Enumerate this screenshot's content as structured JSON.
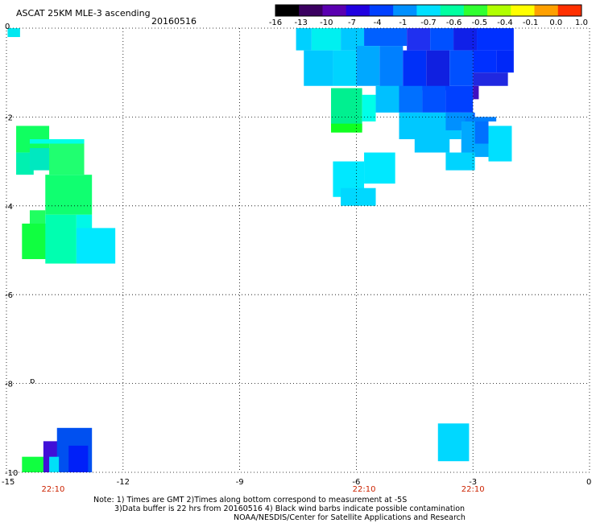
{
  "header": {
    "title": "ASCAT 25KM MLE-3 ascending",
    "date": "20160516"
  },
  "colorbar": {
    "labels": [
      "-16",
      "-13",
      "-10",
      "-7",
      "-4",
      "-1",
      "-0.7",
      "-0.6",
      "-0.5",
      "-0.4",
      "-0.1",
      "0.0",
      "1.0"
    ],
    "colors": [
      "#000000",
      "#3a0060",
      "#5a00b0",
      "#2000e0",
      "#0040ff",
      "#0090ff",
      "#00e0ff",
      "#00ffa0",
      "#30ff30",
      "#b0ff00",
      "#ffff00",
      "#ffa000",
      "#ff3000"
    ]
  },
  "notes": {
    "line1": "Note: 1) Times are GMT 2)Times along bottom correspond to measurement at -5S",
    "line2": "3)Data buffer is 22 hrs from 20160516 4) Black wind barbs indicate possible contamination",
    "line3": "NOAA/NESDIS/Center for Satellite Applications and Research"
  },
  "chart_data": {
    "type": "heatmap",
    "title": "ASCAT 25KM MLE-3 ascending",
    "subtitle": "20160516",
    "xlim": [
      -15,
      0
    ],
    "ylim": [
      -10,
      0
    ],
    "x_ticks": [
      -15,
      -12,
      -9,
      -6,
      -3,
      0
    ],
    "x_tick_labels": [
      "-15",
      "-12",
      "-9",
      "-6",
      "-3",
      "0"
    ],
    "y_ticks": [
      0,
      -2,
      -4,
      -6,
      -8,
      -10
    ],
    "y_tick_labels": [
      "0",
      "-2",
      "-4",
      "-6",
      "-8",
      "-10"
    ],
    "grid": true,
    "time_labels": [
      {
        "x": -13.8,
        "label": "22:10"
      },
      {
        "x": -5.8,
        "label": "22:10"
      },
      {
        "x": -3.0,
        "label": "22:10"
      }
    ],
    "cells": [
      {
        "x0": -14.97,
        "x1": -14.65,
        "y0": -0.2,
        "y1": 0.0,
        "color": "#00e8f0"
      },
      {
        "x0": -7.55,
        "x1": -7.15,
        "y0": -0.5,
        "y1": 0.0,
        "color": "#00d0ff"
      },
      {
        "x0": -7.15,
        "x1": -6.4,
        "y0": -0.5,
        "y1": 0.0,
        "color": "#00f0f0"
      },
      {
        "x0": -6.4,
        "x1": -5.8,
        "y0": -0.5,
        "y1": 0.0,
        "color": "#00c8ff"
      },
      {
        "x0": -5.8,
        "x1": -4.7,
        "y0": -0.4,
        "y1": 0.0,
        "color": "#0060ff"
      },
      {
        "x0": -4.7,
        "x1": -4.1,
        "y0": -0.5,
        "y1": 0.0,
        "color": "#2030f0"
      },
      {
        "x0": -4.1,
        "x1": -3.5,
        "y0": -0.5,
        "y1": 0.0,
        "color": "#0050ff"
      },
      {
        "x0": -3.5,
        "x1": -2.9,
        "y0": -0.5,
        "y1": 0.0,
        "color": "#1020e8"
      },
      {
        "x0": -2.9,
        "x1": -1.95,
        "y0": -0.5,
        "y1": 0.0,
        "color": "#0030ff"
      },
      {
        "x0": -7.35,
        "x1": -6.6,
        "y0": -1.3,
        "y1": -0.5,
        "color": "#00c8ff"
      },
      {
        "x0": -6.6,
        "x1": -6.0,
        "y0": -1.3,
        "y1": -0.5,
        "color": "#00d4ff"
      },
      {
        "x0": -6.0,
        "x1": -5.4,
        "y0": -1.3,
        "y1": -0.4,
        "color": "#00a8ff"
      },
      {
        "x0": -5.4,
        "x1": -4.8,
        "y0": -1.4,
        "y1": -0.4,
        "color": "#0080ff"
      },
      {
        "x0": -4.8,
        "x1": -4.2,
        "y0": -1.4,
        "y1": -0.5,
        "color": "#0030f8"
      },
      {
        "x0": -4.2,
        "x1": -3.6,
        "y0": -1.4,
        "y1": -0.5,
        "color": "#1020e0"
      },
      {
        "x0": -3.6,
        "x1": -3.0,
        "y0": -1.3,
        "y1": -0.5,
        "color": "#0050ff"
      },
      {
        "x0": -3.0,
        "x1": -2.4,
        "y0": -1.0,
        "y1": -0.5,
        "color": "#0030ff"
      },
      {
        "x0": -2.4,
        "x1": -1.95,
        "y0": -1.0,
        "y1": -0.5,
        "color": "#0028f8"
      },
      {
        "x0": -3.0,
        "x1": -2.1,
        "y0": -1.3,
        "y1": -1.0,
        "color": "#2028e0"
      },
      {
        "x0": -6.65,
        "x1": -5.85,
        "y0": -2.3,
        "y1": -1.35,
        "color": "#00f090"
      },
      {
        "x0": -6.65,
        "x1": -5.85,
        "y0": -2.35,
        "y1": -2.15,
        "color": "#10ff20"
      },
      {
        "x0": -5.85,
        "x1": -5.5,
        "y0": -2.1,
        "y1": -1.5,
        "color": "#00ffe8"
      },
      {
        "x0": -5.5,
        "x1": -4.9,
        "y0": -1.9,
        "y1": -1.3,
        "color": "#00c0ff"
      },
      {
        "x0": -4.9,
        "x1": -4.3,
        "y0": -1.9,
        "y1": -1.3,
        "color": "#0070ff"
      },
      {
        "x0": -4.3,
        "x1": -3.7,
        "y0": -1.9,
        "y1": -1.3,
        "color": "#0050ff"
      },
      {
        "x0": -3.7,
        "x1": -3.0,
        "y0": -1.9,
        "y1": -1.3,
        "color": "#0040ff"
      },
      {
        "x0": -3.0,
        "x1": -2.85,
        "y0": -1.6,
        "y1": -1.3,
        "color": "#4010c0"
      },
      {
        "x0": -4.9,
        "x1": -3.3,
        "y0": -2.5,
        "y1": -1.9,
        "color": "#00c8ff"
      },
      {
        "x0": -3.7,
        "x1": -3.0,
        "y0": -2.3,
        "y1": -1.9,
        "color": "#0090ff"
      },
      {
        "x0": -3.0,
        "x1": -2.95,
        "y0": -2.1,
        "y1": -1.9,
        "color": "#0060ff"
      },
      {
        "x0": -4.5,
        "x1": -3.6,
        "y0": -2.8,
        "y1": -2.5,
        "color": "#00c8ff"
      },
      {
        "x0": -3.3,
        "x1": -2.6,
        "y0": -2.9,
        "y1": -2.1,
        "color": "#00a8ff"
      },
      {
        "x0": -2.95,
        "x1": -2.6,
        "y0": -2.6,
        "y1": -2.0,
        "color": "#0070ff"
      },
      {
        "x0": -2.6,
        "x1": -2.0,
        "y0": -3.0,
        "y1": -2.2,
        "color": "#00e0ff"
      },
      {
        "x0": -3.2,
        "x1": -2.4,
        "y0": -2.1,
        "y1": -2.0,
        "color": "#0080ff"
      },
      {
        "x0": -3.7,
        "x1": -2.95,
        "y0": -3.2,
        "y1": -2.8,
        "color": "#00d4ff"
      },
      {
        "x0": -5.8,
        "x1": -5.0,
        "y0": -3.5,
        "y1": -2.8,
        "color": "#00e8ff"
      },
      {
        "x0": -6.6,
        "x1": -5.8,
        "y0": -3.8,
        "y1": -3.0,
        "color": "#00e8ff"
      },
      {
        "x0": -6.4,
        "x1": -5.5,
        "y0": -4.0,
        "y1": -3.6,
        "color": "#00d8ff"
      },
      {
        "x0": -14.75,
        "x1": -13.9,
        "y0": -2.8,
        "y1": -2.2,
        "color": "#10ff60"
      },
      {
        "x0": -14.75,
        "x1": -14.3,
        "y0": -3.3,
        "y1": -2.8,
        "color": "#00f0b0"
      },
      {
        "x0": -14.4,
        "x1": -13.5,
        "y0": -3.2,
        "y1": -2.7,
        "color": "#00e8c0"
      },
      {
        "x0": -13.9,
        "x1": -13.0,
        "y0": -3.3,
        "y1": -2.5,
        "color": "#20ff70"
      },
      {
        "x0": -14.4,
        "x1": -13.0,
        "y0": -2.6,
        "y1": -2.5,
        "color": "#00ffe8"
      },
      {
        "x0": -14.0,
        "x1": -12.8,
        "y0": -4.2,
        "y1": -3.3,
        "color": "#10ff70"
      },
      {
        "x0": -14.4,
        "x1": -14.0,
        "y0": -4.7,
        "y1": -4.1,
        "color": "#20ff60"
      },
      {
        "x0": -14.6,
        "x1": -13.8,
        "y0": -5.2,
        "y1": -4.4,
        "color": "#10ff40"
      },
      {
        "x0": -14.0,
        "x1": -13.2,
        "y0": -5.3,
        "y1": -4.2,
        "color": "#00ffb0"
      },
      {
        "x0": -13.2,
        "x1": -12.8,
        "y0": -5.0,
        "y1": -4.2,
        "color": "#00f8e8"
      },
      {
        "x0": -13.2,
        "x1": -12.2,
        "y0": -5.3,
        "y1": -4.5,
        "color": "#00e8ff"
      },
      {
        "x0": -14.6,
        "x1": -13.9,
        "y0": -10.0,
        "y1": -9.65,
        "color": "#10ff40"
      },
      {
        "x0": -14.05,
        "x1": -13.4,
        "y0": -10.0,
        "y1": -9.3,
        "color": "#4010d8"
      },
      {
        "x0": -13.7,
        "x1": -12.8,
        "y0": -10.0,
        "y1": -9.0,
        "color": "#0050f0"
      },
      {
        "x0": -13.4,
        "x1": -12.9,
        "y0": -10.0,
        "y1": -9.4,
        "color": "#0020f8"
      },
      {
        "x0": -13.9,
        "x1": -13.65,
        "y0": -10.0,
        "y1": -9.65,
        "color": "#00e0f8"
      },
      {
        "x0": -3.9,
        "x1": -3.1,
        "y0": -9.75,
        "y1": -8.9,
        "color": "#00d8ff"
      }
    ],
    "annotations": [
      {
        "x": -14.4,
        "y": -8.0,
        "text": "ɒ"
      }
    ]
  }
}
